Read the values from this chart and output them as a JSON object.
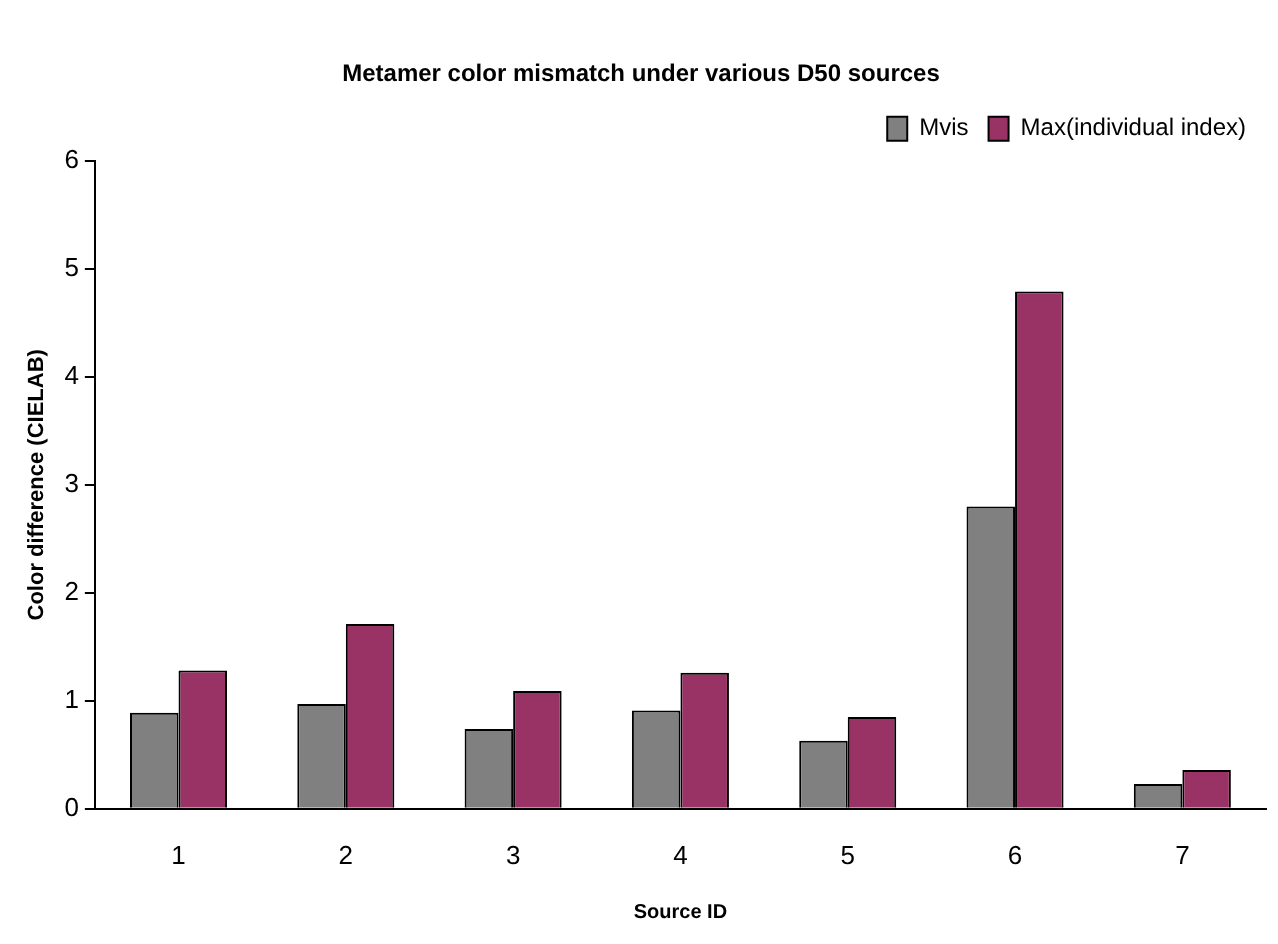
{
  "chart_data": {
    "type": "bar",
    "title": "Metamer color mismatch under various D50 sources",
    "xlabel": "Source ID",
    "ylabel": "Color difference (CIELAB)",
    "categories": [
      "1",
      "2",
      "3",
      "4",
      "5",
      "6",
      "7"
    ],
    "series": [
      {
        "name": "Mvis",
        "color": "#808080",
        "values": [
          0.89,
          0.97,
          0.74,
          0.91,
          0.63,
          2.8,
          0.23
        ]
      },
      {
        "name": "Max(individual index)",
        "color": "#993366",
        "values": [
          1.28,
          1.71,
          1.09,
          1.26,
          0.85,
          4.79,
          0.36
        ]
      }
    ],
    "ylim": [
      0,
      6
    ],
    "yticks": [
      0,
      1,
      2,
      3,
      4,
      5,
      6
    ],
    "grid": false,
    "legend": "top right"
  }
}
